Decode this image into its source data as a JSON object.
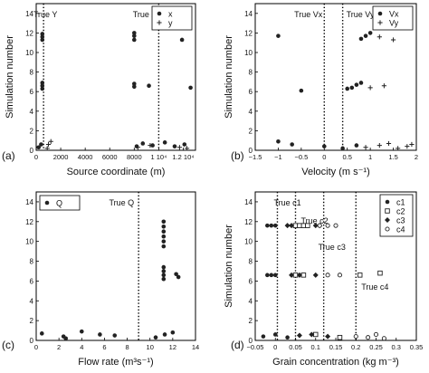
{
  "chart_data": [
    {
      "type": "scatter",
      "panel_label": "(a)",
      "xlabel": "Source coordinate (m)",
      "ylabel": "Simulation number",
      "xlim": [
        0,
        13000
      ],
      "ylim": [
        0,
        15
      ],
      "x_ticks": [
        0,
        2000,
        4000,
        6000,
        8000,
        10000,
        12000
      ],
      "x_tick_labels": [
        "0",
        "2000",
        "4000",
        "6000",
        "8000",
        "1 10⁴",
        "1.2 10⁴"
      ],
      "y_ticks": [
        0,
        2,
        4,
        6,
        8,
        10,
        12,
        14
      ],
      "legend": {
        "position": "top-right",
        "entries": [
          {
            "label": "x",
            "marker": "dot"
          },
          {
            "label": "y",
            "marker": "plus"
          }
        ]
      },
      "reference_lines": [
        {
          "label": "True Y",
          "x": 600
        },
        {
          "label": "True X",
          "x": 10000
        }
      ],
      "series": [
        {
          "name": "x",
          "marker": "dot",
          "points": [
            [
              500,
              11.3
            ],
            [
              500,
              11.6
            ],
            [
              500,
              11.9
            ],
            [
              500,
              6.3
            ],
            [
              500,
              6.6
            ],
            [
              500,
              6.9
            ],
            [
              8000,
              11.3
            ],
            [
              8000,
              11.7
            ],
            [
              8000,
              12.0
            ],
            [
              8000,
              6.5
            ],
            [
              8000,
              6.8
            ],
            [
              9200,
              6.6
            ],
            [
              11900,
              11.3
            ],
            [
              12600,
              6.4
            ],
            [
              200,
              0.3
            ],
            [
              400,
              0.6
            ],
            [
              8200,
              0.4
            ],
            [
              8700,
              0.7
            ],
            [
              9500,
              0.5
            ],
            [
              10500,
              0.8
            ],
            [
              11300,
              0.4
            ],
            [
              12100,
              0.6
            ]
          ]
        },
        {
          "name": "y",
          "marker": "plus",
          "points": [
            [
              900,
              0.2
            ],
            [
              1000,
              0.6
            ],
            [
              1200,
              0.9
            ],
            [
              8300,
              0.3
            ],
            [
              9300,
              0.5
            ],
            [
              11700,
              0.3
            ],
            [
              12300,
              0.2
            ]
          ]
        }
      ]
    },
    {
      "type": "scatter",
      "panel_label": "(b)",
      "xlabel": "Velocity (m s⁻¹)",
      "ylabel": "Simulation number",
      "xlim": [
        -1.5,
        2.0
      ],
      "ylim": [
        0,
        15
      ],
      "x_ticks": [
        -1.5,
        -1,
        -0.5,
        0,
        0.5,
        1,
        1.5,
        2
      ],
      "x_tick_labels": [
        "−1.5",
        "−1",
        "−0.5",
        "0",
        "0.5",
        "1",
        "1.5",
        "2"
      ],
      "y_ticks": [
        0,
        2,
        4,
        6,
        8,
        10,
        12,
        14
      ],
      "legend": {
        "position": "top-right",
        "entries": [
          {
            "label": "Vx",
            "marker": "dot"
          },
          {
            "label": "Vy",
            "marker": "plus"
          }
        ]
      },
      "reference_lines": [
        {
          "label": "True Vx",
          "x": 0.0
        },
        {
          "label": "True Vy",
          "x": 0.4
        }
      ],
      "series": [
        {
          "name": "Vx",
          "marker": "dot",
          "points": [
            [
              -1.0,
              11.7
            ],
            [
              0.8,
              11.4
            ],
            [
              0.9,
              11.7
            ],
            [
              1.0,
              12.0
            ],
            [
              0.6,
              6.4
            ],
            [
              0.7,
              6.7
            ],
            [
              0.8,
              6.9
            ],
            [
              0.5,
              6.3
            ],
            [
              -0.5,
              6.1
            ],
            [
              -1.0,
              0.9
            ],
            [
              -0.7,
              0.6
            ],
            [
              0.0,
              0.4
            ],
            [
              0.4,
              0.2
            ],
            [
              0.7,
              0.5
            ]
          ]
        },
        {
          "name": "Vy",
          "marker": "plus",
          "points": [
            [
              1.2,
              11.6
            ],
            [
              1.5,
              11.3
            ],
            [
              1.3,
              6.6
            ],
            [
              1.0,
              6.4
            ],
            [
              0.9,
              0.3
            ],
            [
              1.2,
              0.5
            ],
            [
              1.4,
              0.7
            ],
            [
              1.6,
              0.2
            ],
            [
              1.8,
              0.4
            ],
            [
              1.9,
              0.6
            ]
          ]
        }
      ]
    },
    {
      "type": "scatter",
      "panel_label": "(c)",
      "xlabel": "Flow rate (m³s⁻¹)",
      "ylabel": "",
      "xlim": [
        0,
        14
      ],
      "ylim": [
        0,
        15
      ],
      "x_ticks": [
        0,
        2,
        4,
        6,
        8,
        10,
        12,
        14
      ],
      "x_tick_labels": [
        "0",
        "2",
        "4",
        "6",
        "8",
        "10",
        "12",
        "14"
      ],
      "y_ticks": [
        0,
        2,
        4,
        6,
        8,
        10,
        12,
        14
      ],
      "legend": {
        "position": "top-left",
        "entries": [
          {
            "label": "Q",
            "marker": "dot"
          }
        ]
      },
      "reference_lines": [
        {
          "label": "True Q",
          "x": 9.0
        }
      ],
      "series": [
        {
          "name": "Q",
          "marker": "dot",
          "points": [
            [
              11.2,
              9.5
            ],
            [
              11.2,
              10.0
            ],
            [
              11.2,
              10.5
            ],
            [
              11.2,
              11.0
            ],
            [
              11.2,
              11.5
            ],
            [
              11.2,
              12.0
            ],
            [
              11.2,
              6.2
            ],
            [
              11.2,
              6.6
            ],
            [
              11.2,
              7.0
            ],
            [
              11.2,
              7.4
            ],
            [
              12.3,
              6.7
            ],
            [
              12.5,
              6.4
            ],
            [
              0.5,
              0.7
            ],
            [
              2.4,
              0.4
            ],
            [
              2.6,
              0.2
            ],
            [
              4.0,
              0.9
            ],
            [
              5.6,
              0.6
            ],
            [
              6.9,
              0.5
            ],
            [
              10.5,
              0.3
            ],
            [
              11.3,
              0.6
            ],
            [
              12.0,
              0.8
            ]
          ]
        }
      ]
    },
    {
      "type": "scatter",
      "panel_label": "(d)",
      "xlabel": "Grain concentration (kg m⁻³)",
      "ylabel": "Simulation number",
      "xlim": [
        -0.05,
        0.35
      ],
      "ylim": [
        0,
        15
      ],
      "x_ticks": [
        -0.05,
        0,
        0.05,
        0.1,
        0.15,
        0.2,
        0.25,
        0.3,
        0.35
      ],
      "x_tick_labels": [
        "−0.05",
        "0",
        "0.05",
        "0.1",
        "0.15",
        "0.2",
        "0.25",
        "0.3",
        "0.35"
      ],
      "y_ticks": [
        0,
        2,
        4,
        6,
        8,
        10,
        12,
        14
      ],
      "legend": {
        "position": "top-right",
        "entries": [
          {
            "label": "c1",
            "marker": "dot"
          },
          {
            "label": "c2",
            "marker": "square"
          },
          {
            "label": "c3",
            "marker": "diamond"
          },
          {
            "label": "c4",
            "marker": "circle"
          }
        ]
      },
      "reference_lines": [
        {
          "label": "True c1",
          "x": 0.005
        },
        {
          "label": "True c2",
          "x": 0.05
        },
        {
          "label": "True c3",
          "x": 0.12
        },
        {
          "label": "True c4",
          "x": 0.2
        }
      ],
      "series": [
        {
          "name": "c1",
          "marker": "dot",
          "points": [
            [
              -0.02,
              11.6
            ],
            [
              -0.01,
              11.6
            ],
            [
              0.0,
              11.6
            ],
            [
              -0.02,
              6.6
            ],
            [
              -0.01,
              6.6
            ],
            [
              0.0,
              6.6
            ],
            [
              -0.03,
              0.4
            ],
            [
              0.0,
              0.6
            ],
            [
              0.03,
              0.3
            ]
          ]
        },
        {
          "name": "c2",
          "marker": "square",
          "points": [
            [
              0.05,
              11.6
            ],
            [
              0.06,
              11.6
            ],
            [
              0.07,
              11.6
            ],
            [
              0.08,
              11.6
            ],
            [
              0.05,
              6.6
            ],
            [
              0.07,
              6.6
            ],
            [
              0.21,
              6.6
            ],
            [
              0.26,
              6.8
            ],
            [
              0.1,
              0.6
            ],
            [
              0.16,
              0.3
            ]
          ]
        },
        {
          "name": "c3",
          "marker": "diamond",
          "points": [
            [
              0.03,
              11.6
            ],
            [
              0.04,
              11.6
            ],
            [
              0.1,
              11.6
            ],
            [
              0.11,
              11.6
            ],
            [
              0.04,
              6.6
            ],
            [
              0.06,
              6.6
            ],
            [
              0.1,
              6.6
            ],
            [
              0.06,
              0.5
            ],
            [
              0.09,
              0.6
            ],
            [
              0.13,
              0.4
            ]
          ]
        },
        {
          "name": "c4",
          "marker": "circle",
          "points": [
            [
              0.11,
              11.6
            ],
            [
              0.13,
              11.6
            ],
            [
              0.15,
              11.6
            ],
            [
              0.13,
              6.6
            ],
            [
              0.16,
              6.6
            ],
            [
              0.2,
              0.4
            ],
            [
              0.23,
              0.3
            ],
            [
              0.25,
              0.6
            ],
            [
              0.27,
              0.2
            ]
          ]
        }
      ]
    }
  ]
}
